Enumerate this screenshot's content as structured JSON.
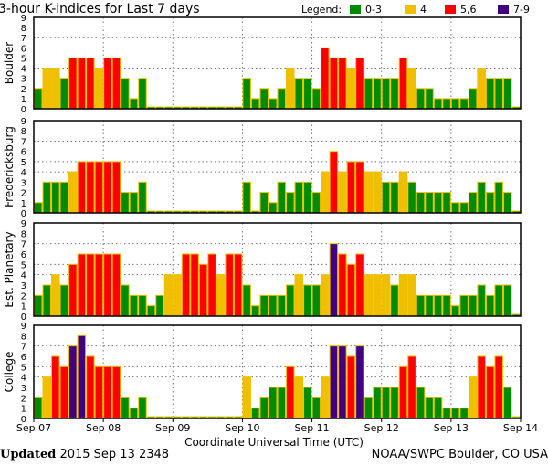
{
  "chart_data": {
    "type": "bar",
    "title": "3-hour K-indices for Last 7 days",
    "xlabel": "Coordinate Universal Time (UTC)",
    "x_ticks": [
      "Sep 07",
      "Sep 08",
      "Sep 09",
      "Sep 10",
      "Sep 11",
      "Sep 12",
      "Sep 13",
      "Sep 14"
    ],
    "y_ticks": [
      "0",
      "1",
      "2",
      "3",
      "4",
      "5",
      "6",
      "7",
      "8",
      "9"
    ],
    "ylim": [
      0,
      9
    ],
    "bars_per_day": 8,
    "legend": {
      "label": "Legend:",
      "placement": "top-right",
      "entries": [
        {
          "label": "0-3",
          "color": "#008c00"
        },
        {
          "label": "4",
          "color": "#f0c000"
        },
        {
          "label": "5,6",
          "color": "#ff0000"
        },
        {
          "label": "7-9",
          "color": "#400080"
        }
      ]
    },
    "series": [
      {
        "name": "Boulder",
        "values": [
          2,
          4,
          4,
          3,
          5,
          5,
          5,
          4,
          5,
          5,
          3,
          1,
          3,
          0,
          0,
          0,
          0,
          0,
          0,
          0,
          0,
          0,
          0,
          0,
          3,
          1,
          2,
          1,
          2,
          4,
          3,
          3,
          2,
          6,
          5,
          5,
          4,
          5,
          3,
          3,
          3,
          3,
          5,
          4,
          2,
          2,
          1,
          1,
          1,
          1,
          2,
          4,
          3,
          3,
          3,
          0
        ]
      },
      {
        "name": "Fredericksburg",
        "values": [
          1,
          3,
          3,
          3,
          4,
          5,
          5,
          5,
          5,
          5,
          2,
          2,
          3,
          0,
          0,
          0,
          0,
          0,
          0,
          0,
          0,
          0,
          0,
          0,
          3,
          0,
          2,
          1,
          3,
          2,
          3,
          3,
          2,
          4,
          6,
          4,
          5,
          5,
          4,
          4,
          3,
          3,
          4,
          3,
          2,
          2,
          2,
          2,
          1,
          1,
          2,
          3,
          2,
          3,
          2,
          0
        ]
      },
      {
        "name": "Est. Planetary",
        "values": [
          2,
          3,
          4,
          3,
          5,
          6,
          6,
          6,
          6,
          6,
          3,
          2,
          2,
          1,
          2,
          4,
          4,
          6,
          6,
          5,
          6,
          4,
          6,
          6,
          3,
          1,
          2,
          2,
          2,
          3,
          4,
          3,
          3,
          4,
          7,
          6,
          5,
          6,
          4,
          4,
          4,
          3,
          4,
          4,
          2,
          2,
          2,
          2,
          1,
          2,
          2,
          3,
          2,
          3,
          3,
          0
        ]
      },
      {
        "name": "College",
        "values": [
          2,
          4,
          6,
          5,
          7,
          8,
          6,
          5,
          5,
          5,
          2,
          1,
          2,
          0,
          0,
          0,
          0,
          0,
          0,
          0,
          0,
          0,
          0,
          0,
          4,
          1,
          2,
          3,
          3,
          5,
          4,
          3,
          2,
          4,
          7,
          7,
          6,
          7,
          2,
          3,
          3,
          3,
          5,
          6,
          3,
          2,
          2,
          1,
          1,
          1,
          4,
          6,
          5,
          6,
          3,
          0
        ]
      }
    ]
  },
  "footer": {
    "updated_label": "Updated",
    "updated_value": "2015 Sep 13 2348",
    "source": "NOAA/SWPC Boulder, CO USA"
  }
}
